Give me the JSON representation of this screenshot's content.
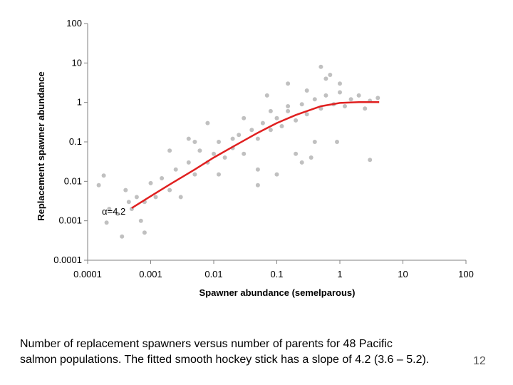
{
  "chart_data": {
    "type": "scatter",
    "title": "",
    "xlabel": "Spawner abundance (semelparous)",
    "ylabel": "Replacement spawner abundance",
    "x_scale": "log",
    "y_scale": "log",
    "xlim": [
      0.0001,
      100
    ],
    "ylim": [
      0.0001,
      100
    ],
    "x_ticks": [
      "0.0001",
      "0.001",
      "0.01",
      "0.1",
      "1",
      "10",
      "100"
    ],
    "y_ticks": [
      "0.0001",
      "0.001",
      "0.01",
      "0.1",
      "1",
      "10",
      "100"
    ],
    "grid": false,
    "legend": "none",
    "annotation": "α=4.2",
    "colors": {
      "points": "#c0c0c0",
      "fit_line": "#e02020",
      "axes": "#808080"
    },
    "series": [
      {
        "type": "scatter",
        "x": [
          0.00015,
          0.00018,
          0.0002,
          0.00022,
          0.0003,
          0.00035,
          0.0004,
          0.00045,
          0.0005,
          0.0006,
          0.0007,
          0.0008,
          0.0008,
          0.001,
          0.0012,
          0.0015,
          0.002,
          0.0025,
          0.003,
          0.004,
          0.005,
          0.006,
          0.008,
          0.01,
          0.012,
          0.015,
          0.02,
          0.025,
          0.03,
          0.04,
          0.05,
          0.06,
          0.08,
          0.1,
          0.12,
          0.15,
          0.2,
          0.25,
          0.3,
          0.4,
          0.5,
          0.6,
          0.8,
          1,
          1.2,
          1.5,
          2,
          2.5,
          3,
          4,
          0.005,
          0.008,
          0.012,
          0.02,
          0.03,
          0.05,
          0.08,
          0.15,
          0.3,
          0.6,
          1,
          0.05,
          0.1,
          0.2,
          0.4,
          0.7,
          0.002,
          0.004,
          0.25,
          3,
          0.5,
          0.9,
          0.07,
          0.15,
          0.35
        ],
        "y": [
          0.008,
          0.014,
          0.0009,
          0.002,
          0.0015,
          0.0004,
          0.006,
          0.003,
          0.002,
          0.004,
          0.001,
          0.003,
          0.0005,
          0.009,
          0.004,
          0.012,
          0.006,
          0.02,
          0.004,
          0.03,
          0.015,
          0.06,
          0.03,
          0.05,
          0.1,
          0.04,
          0.07,
          0.15,
          0.05,
          0.2,
          0.12,
          0.3,
          0.2,
          0.4,
          0.25,
          0.6,
          0.35,
          0.9,
          0.5,
          1.2,
          0.7,
          1.5,
          0.9,
          1.8,
          0.8,
          1.2,
          1.5,
          0.7,
          1.1,
          1.3,
          0.1,
          0.3,
          0.015,
          0.12,
          0.4,
          0.02,
          0.6,
          0.8,
          2,
          4,
          3,
          0.008,
          0.015,
          0.05,
          0.1,
          5,
          0.06,
          0.12,
          0.03,
          0.035,
          8,
          0.1,
          1.5,
          3,
          0.04
        ]
      },
      {
        "type": "line",
        "name": "",
        "x": [
          0.0005,
          0.001,
          0.002,
          0.005,
          0.01,
          0.02,
          0.05,
          0.1,
          0.2,
          0.5,
          1,
          2,
          4.2
        ],
        "y": [
          0.0021,
          0.0042,
          0.0083,
          0.02,
          0.04,
          0.075,
          0.17,
          0.3,
          0.48,
          0.8,
          0.97,
          1.02,
          1.02
        ]
      }
    ]
  },
  "caption": {
    "line1": "Number of replacement spawners versus number of parents for 48 Pacific",
    "line2": "salmon populations. The fitted smooth hockey stick has a slope of 4.2 (3.6 – 5.2)."
  },
  "page_number": "12"
}
